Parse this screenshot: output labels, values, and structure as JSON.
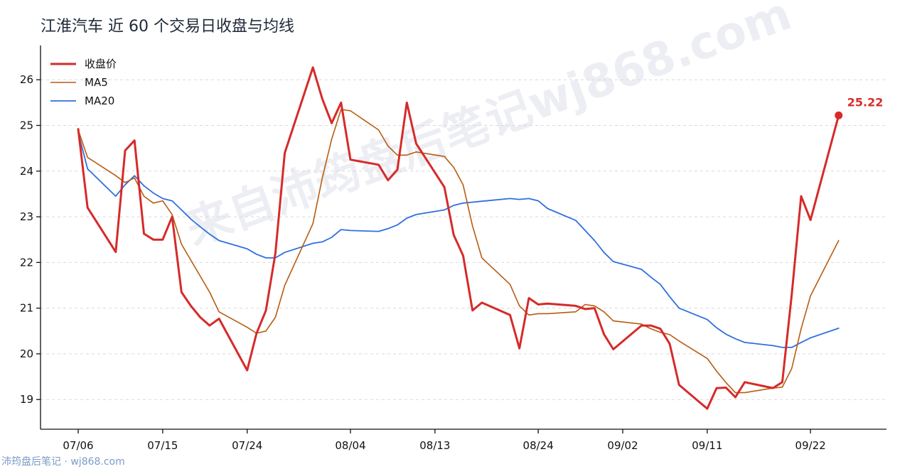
{
  "title": "江淮汽车 近 60 个交易日收盘与均线",
  "watermark": "来自沛筠盘后笔记wj868.com",
  "footer": "沛筠盘后笔记 · wj868.com",
  "chart_data": {
    "type": "line",
    "x": [
      "07/06",
      "07/07",
      "07/08",
      "07/09",
      "07/10",
      "07/11",
      "07/12",
      "07/13",
      "07/14",
      "07/15",
      "07/16",
      "07/17",
      "07/18",
      "07/19",
      "07/20",
      "07/21",
      "07/22",
      "07/23",
      "07/24",
      "07/25",
      "07/26",
      "07/27",
      "07/28",
      "07/29",
      "07/30",
      "07/31",
      "08/01",
      "08/02",
      "08/03",
      "08/04",
      "08/05",
      "08/06",
      "08/07",
      "08/08",
      "08/09",
      "08/10",
      "08/11",
      "08/12",
      "08/13",
      "08/14",
      "08/15",
      "08/16",
      "08/17",
      "08/18",
      "08/19",
      "08/20",
      "08/21",
      "08/22",
      "08/23",
      "08/24",
      "08/25",
      "08/26",
      "08/27",
      "08/28",
      "08/29",
      "08/30",
      "08/31",
      "09/01",
      "09/02",
      "09/03",
      "09/04",
      "09/05",
      "09/06",
      "09/07",
      "09/08",
      "09/09",
      "09/10",
      "09/11",
      "09/12",
      "09/13",
      "09/14",
      "09/15",
      "09/16",
      "09/17",
      "09/18",
      "09/19",
      "09/20",
      "09/21",
      "09/22",
      "09/23",
      "09/24",
      "09/25",
      "09/26"
    ],
    "x_ticks": [
      "07/06",
      "07/15",
      "07/24",
      "08/04",
      "08/13",
      "08/24",
      "09/02",
      "09/11",
      "09/22"
    ],
    "y_ticks": [
      19,
      20,
      21,
      22,
      23,
      24,
      25,
      26
    ],
    "ylim": [
      18.35,
      26.75
    ],
    "grid": true,
    "legend_position": "top-left",
    "series": [
      {
        "name": "收盘价",
        "color": "#d62a2a",
        "points": [
          [
            "07/06",
            24.92
          ],
          [
            "07/07",
            23.2
          ],
          [
            "07/10",
            22.23
          ],
          [
            "07/11",
            24.45
          ],
          [
            "07/12",
            24.67
          ],
          [
            "07/13",
            22.63
          ],
          [
            "07/14",
            22.5
          ],
          [
            "07/15",
            22.5
          ],
          [
            "07/16",
            23.0
          ],
          [
            "07/17",
            21.35
          ],
          [
            "07/18",
            21.05
          ],
          [
            "07/19",
            20.8
          ],
          [
            "07/20",
            20.62
          ],
          [
            "07/21",
            20.77
          ],
          [
            "07/24",
            19.64
          ],
          [
            "07/25",
            20.45
          ],
          [
            "07/26",
            20.95
          ],
          [
            "07/27",
            22.2
          ],
          [
            "07/28",
            24.4
          ],
          [
            "07/31",
            26.27
          ],
          [
            "08/01",
            25.58
          ],
          [
            "08/02",
            25.05
          ],
          [
            "08/03",
            25.5
          ],
          [
            "08/04",
            24.25
          ],
          [
            "08/07",
            24.14
          ],
          [
            "08/08",
            23.8
          ],
          [
            "08/09",
            24.03
          ],
          [
            "08/10",
            25.5
          ],
          [
            "08/11",
            24.6
          ],
          [
            "08/14",
            23.65
          ],
          [
            "08/15",
            22.6
          ],
          [
            "08/16",
            22.15
          ],
          [
            "08/17",
            20.95
          ],
          [
            "08/18",
            21.12
          ],
          [
            "08/21",
            20.85
          ],
          [
            "08/22",
            20.12
          ],
          [
            "08/23",
            21.22
          ],
          [
            "08/24",
            21.08
          ],
          [
            "08/25",
            21.1
          ],
          [
            "08/28",
            21.05
          ],
          [
            "08/29",
            20.98
          ],
          [
            "08/30",
            21.0
          ],
          [
            "08/31",
            20.43
          ],
          [
            "09/01",
            20.1
          ],
          [
            "09/04",
            20.62
          ],
          [
            "09/05",
            20.62
          ],
          [
            "09/06",
            20.55
          ],
          [
            "09/07",
            20.22
          ],
          [
            "09/08",
            19.32
          ],
          [
            "09/11",
            18.8
          ],
          [
            "09/12",
            19.25
          ],
          [
            "09/13",
            19.26
          ],
          [
            "09/14",
            19.05
          ],
          [
            "09/15",
            19.38
          ],
          [
            "09/18",
            19.25
          ],
          [
            "09/19",
            19.38
          ],
          [
            "09/20",
            21.3
          ],
          [
            "09/21",
            23.45
          ],
          [
            "09/22",
            22.93
          ],
          [
            "09/25",
            25.22
          ]
        ]
      },
      {
        "name": "MA5",
        "color": "#b85c10",
        "points": [
          [
            "07/06",
            24.9
          ],
          [
            "07/07",
            24.3
          ],
          [
            "07/10",
            23.9
          ],
          [
            "07/11",
            23.75
          ],
          [
            "07/12",
            23.85
          ],
          [
            "07/13",
            23.45
          ],
          [
            "07/14",
            23.3
          ],
          [
            "07/15",
            23.35
          ],
          [
            "07/16",
            23.05
          ],
          [
            "07/17",
            22.4
          ],
          [
            "07/18",
            22.05
          ],
          [
            "07/19",
            21.7
          ],
          [
            "07/20",
            21.35
          ],
          [
            "07/21",
            20.92
          ],
          [
            "07/24",
            20.58
          ],
          [
            "07/25",
            20.45
          ],
          [
            "07/26",
            20.5
          ],
          [
            "07/27",
            20.8
          ],
          [
            "07/28",
            21.5
          ],
          [
            "07/31",
            22.85
          ],
          [
            "08/01",
            23.85
          ],
          [
            "08/02",
            24.7
          ],
          [
            "08/03",
            25.35
          ],
          [
            "08/04",
            25.32
          ],
          [
            "08/07",
            24.9
          ],
          [
            "08/08",
            24.55
          ],
          [
            "08/09",
            24.35
          ],
          [
            "08/10",
            24.35
          ],
          [
            "08/11",
            24.42
          ],
          [
            "08/14",
            24.32
          ],
          [
            "08/15",
            24.08
          ],
          [
            "08/16",
            23.7
          ],
          [
            "08/17",
            22.8
          ],
          [
            "08/18",
            22.1
          ],
          [
            "08/21",
            21.52
          ],
          [
            "08/22",
            21.05
          ],
          [
            "08/23",
            20.85
          ],
          [
            "08/24",
            20.88
          ],
          [
            "08/25",
            20.88
          ],
          [
            "08/28",
            20.92
          ],
          [
            "08/29",
            21.08
          ],
          [
            "08/30",
            21.05
          ],
          [
            "08/31",
            20.92
          ],
          [
            "09/01",
            20.72
          ],
          [
            "09/04",
            20.65
          ],
          [
            "09/05",
            20.55
          ],
          [
            "09/06",
            20.47
          ],
          [
            "09/07",
            20.42
          ],
          [
            "09/08",
            20.28
          ],
          [
            "09/11",
            19.9
          ],
          [
            "09/12",
            19.62
          ],
          [
            "09/13",
            19.37
          ],
          [
            "09/14",
            19.15
          ],
          [
            "09/15",
            19.15
          ],
          [
            "09/18",
            19.25
          ],
          [
            "09/19",
            19.27
          ],
          [
            "09/20",
            19.68
          ],
          [
            "09/21",
            20.55
          ],
          [
            "09/22",
            21.27
          ],
          [
            "09/25",
            22.48
          ]
        ]
      },
      {
        "name": "MA20",
        "color": "#2f6fe0",
        "points": [
          [
            "07/06",
            24.85
          ],
          [
            "07/07",
            24.05
          ],
          [
            "07/10",
            23.45
          ],
          [
            "07/11",
            23.7
          ],
          [
            "07/12",
            23.9
          ],
          [
            "07/13",
            23.68
          ],
          [
            "07/14",
            23.52
          ],
          [
            "07/15",
            23.4
          ],
          [
            "07/16",
            23.35
          ],
          [
            "07/17",
            23.15
          ],
          [
            "07/18",
            22.95
          ],
          [
            "07/19",
            22.78
          ],
          [
            "07/20",
            22.62
          ],
          [
            "07/21",
            22.48
          ],
          [
            "07/24",
            22.3
          ],
          [
            "07/25",
            22.18
          ],
          [
            "07/26",
            22.1
          ],
          [
            "07/27",
            22.1
          ],
          [
            "07/28",
            22.22
          ],
          [
            "07/31",
            22.42
          ],
          [
            "08/01",
            22.45
          ],
          [
            "08/02",
            22.55
          ],
          [
            "08/03",
            22.72
          ],
          [
            "08/04",
            22.7
          ],
          [
            "08/07",
            22.68
          ],
          [
            "08/08",
            22.74
          ],
          [
            "08/09",
            22.82
          ],
          [
            "08/10",
            22.97
          ],
          [
            "08/11",
            23.05
          ],
          [
            "08/14",
            23.15
          ],
          [
            "08/15",
            23.25
          ],
          [
            "08/16",
            23.3
          ],
          [
            "08/17",
            23.32
          ],
          [
            "08/18",
            23.34
          ],
          [
            "08/21",
            23.4
          ],
          [
            "08/22",
            23.38
          ],
          [
            "08/23",
            23.4
          ],
          [
            "08/24",
            23.35
          ],
          [
            "08/25",
            23.18
          ],
          [
            "08/28",
            22.92
          ],
          [
            "08/29",
            22.7
          ],
          [
            "08/30",
            22.48
          ],
          [
            "08/31",
            22.22
          ],
          [
            "09/01",
            22.02
          ],
          [
            "09/04",
            21.85
          ],
          [
            "09/05",
            21.68
          ],
          [
            "09/06",
            21.52
          ],
          [
            "09/07",
            21.25
          ],
          [
            "09/08",
            21.0
          ],
          [
            "09/11",
            20.75
          ],
          [
            "09/12",
            20.57
          ],
          [
            "09/13",
            20.43
          ],
          [
            "09/14",
            20.33
          ],
          [
            "09/15",
            20.25
          ],
          [
            "09/18",
            20.18
          ],
          [
            "09/19",
            20.14
          ],
          [
            "09/20",
            20.14
          ],
          [
            "09/21",
            20.25
          ],
          [
            "09/22",
            20.35
          ],
          [
            "09/25",
            20.56
          ]
        ]
      }
    ],
    "last_value_label": "25.22"
  }
}
